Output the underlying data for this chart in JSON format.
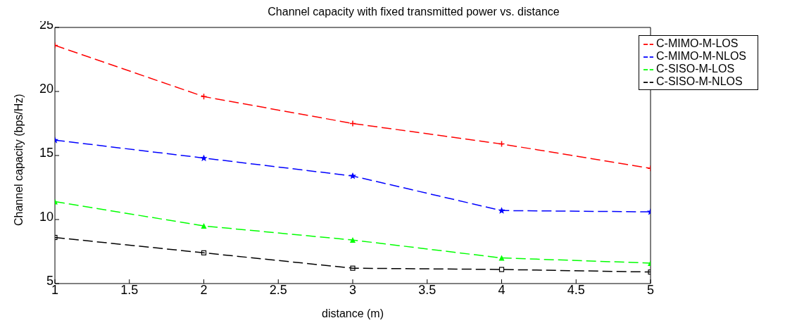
{
  "chart_data": {
    "type": "line",
    "title": "Channel capacity with fixed transmitted power vs. distance",
    "xlabel": "distance (m)",
    "ylabel": "Channel capacity (bps/Hz)",
    "x": [
      1,
      2,
      3,
      4,
      5
    ],
    "series": [
      {
        "name": "C-MIMO-M-LOS",
        "color": "#ff0000",
        "values": [
          23.6,
          19.6,
          17.5,
          15.9,
          14.0
        ],
        "marker": "cross",
        "line_style": "dashed"
      },
      {
        "name": "C-MIMO-M-NLOS",
        "color": "#0000ff",
        "values": [
          16.2,
          14.8,
          13.4,
          10.7,
          10.6
        ],
        "marker": "star",
        "line_style": "dashed"
      },
      {
        "name": "C-SISO-M-LOS",
        "color": "#00ff00",
        "values": [
          11.4,
          9.5,
          8.4,
          7.0,
          6.6
        ],
        "marker": "triangle",
        "line_style": "dashed"
      },
      {
        "name": "C-SISO-M-NLOS",
        "color": "#000000",
        "values": [
          8.6,
          7.4,
          6.2,
          6.1,
          5.9
        ],
        "marker": "square",
        "line_style": "dashed"
      }
    ],
    "xlim": [
      1,
      5
    ],
    "xticks": [
      1,
      1.5,
      2,
      2.5,
      3,
      3.5,
      4,
      4.5,
      5
    ],
    "ylim": [
      5,
      25
    ],
    "yticks": [
      5,
      10,
      15,
      20,
      25
    ],
    "grid": false,
    "legend": "top right"
  }
}
